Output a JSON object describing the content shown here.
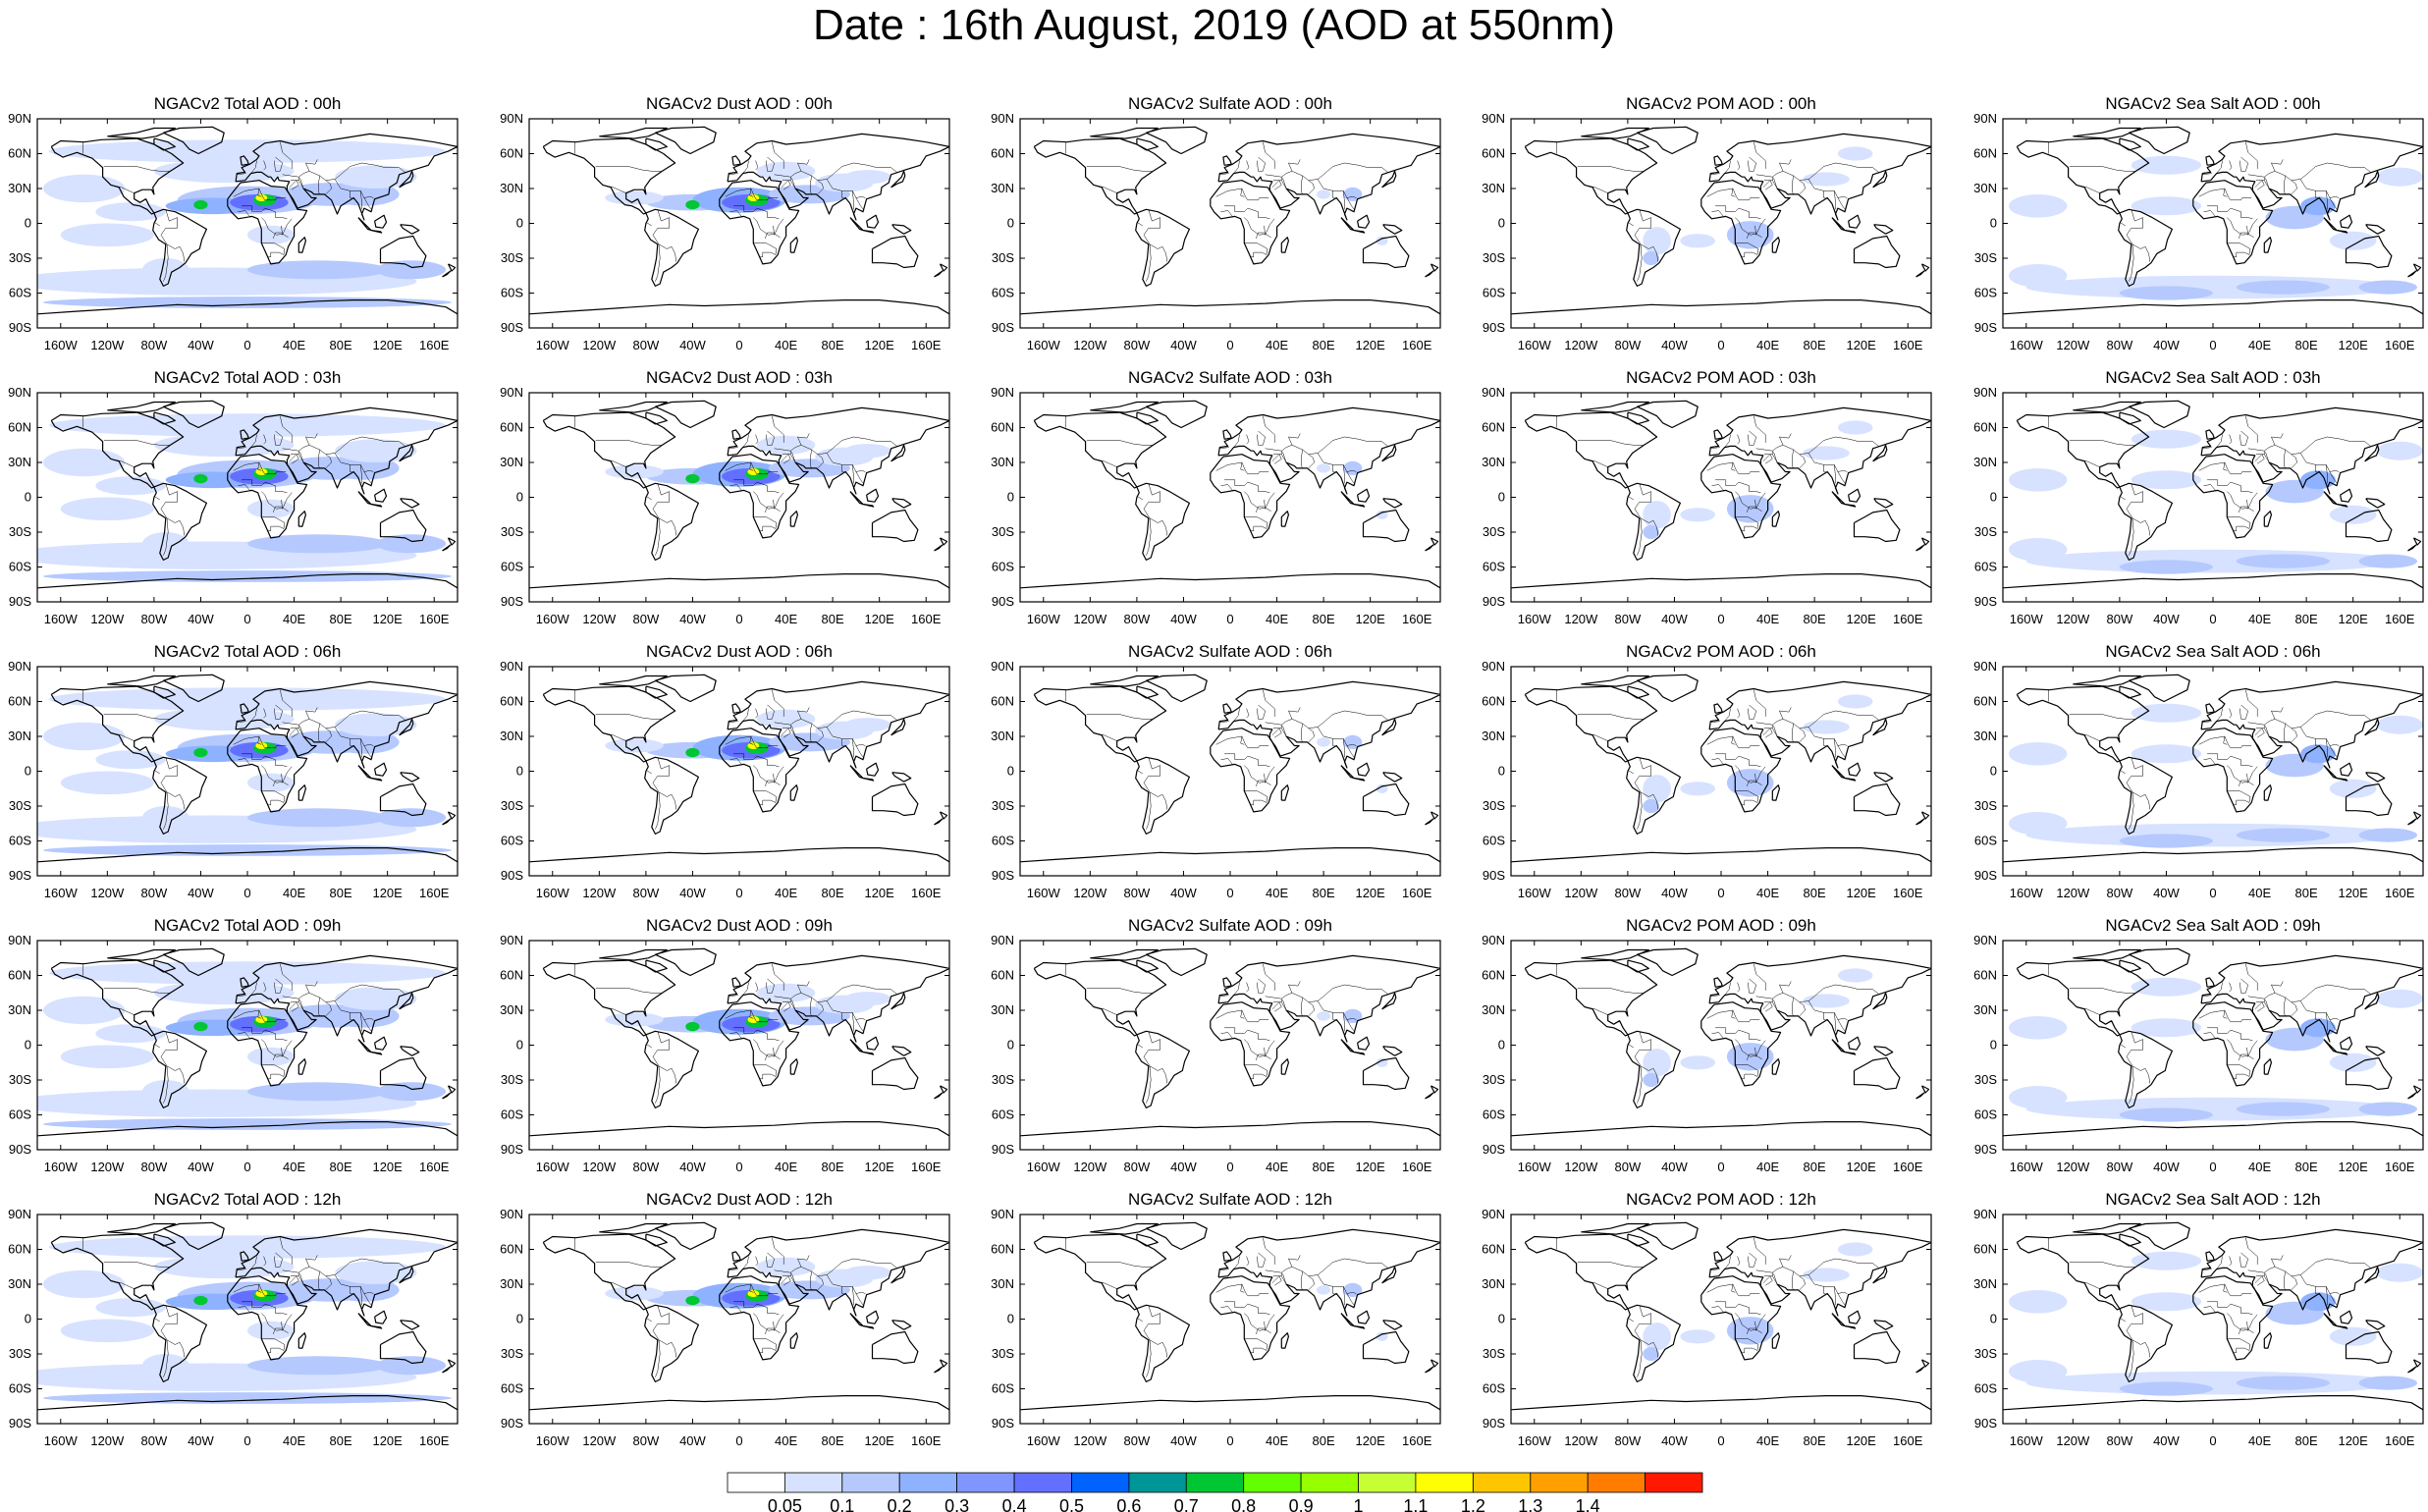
{
  "figure": {
    "title": "Date : 16th August, 2019 (AOD at 550nm)"
  },
  "map_axes": {
    "lat_ticks": [
      "90N",
      "60N",
      "30N",
      "0",
      "30S",
      "60S",
      "90S"
    ],
    "lon_ticks": [
      "160W",
      "120W",
      "80W",
      "40W",
      "0",
      "40E",
      "80E",
      "120E",
      "160E"
    ],
    "lon_tick_values": [
      -160,
      -120,
      -80,
      -40,
      0,
      40,
      80,
      120,
      160
    ],
    "lat_tick_values": [
      90,
      60,
      30,
      0,
      -30,
      -60,
      -90
    ]
  },
  "panels": [
    [
      "NGACv2 Total AOD : 00h",
      "NGACv2 Dust AOD : 00h",
      "NGACv2 Sulfate AOD : 00h",
      "NGACv2 POM AOD : 00h",
      "NGACv2 Sea Salt AOD : 00h"
    ],
    [
      "NGACv2 Total AOD : 03h",
      "NGACv2 Dust AOD : 03h",
      "NGACv2 Sulfate AOD : 03h",
      "NGACv2 POM AOD : 03h",
      "NGACv2 Sea Salt AOD : 03h"
    ],
    [
      "NGACv2 Total AOD : 06h",
      "NGACv2 Dust AOD : 06h",
      "NGACv2 Sulfate AOD : 06h",
      "NGACv2 POM AOD : 06h",
      "NGACv2 Sea Salt AOD : 06h"
    ],
    [
      "NGACv2 Total AOD : 09h",
      "NGACv2 Dust AOD : 09h",
      "NGACv2 Sulfate AOD : 09h",
      "NGACv2 POM AOD : 09h",
      "NGACv2 Sea Salt  AOD : 09h"
    ],
    [
      "NGACv2 Total AOD  : 12h",
      "NGACv2 Dust AOD : 12h",
      "NGACv2 Sulfate AOD : 12h",
      "NGACv2 POM  AOD : 12h",
      "NGACv2 Sea Salt AOD : 12h"
    ]
  ],
  "colorbar": {
    "labels": [
      "0.05",
      "0.1",
      "0.2",
      "0.3",
      "0.4",
      "0.5",
      "0.6",
      "0.7",
      "0.8",
      "0.9",
      "1",
      "1.1",
      "1.2",
      "1.3",
      "1.4"
    ],
    "colors": [
      "#ffffff",
      "#d6e2ff",
      "#b5c9ff",
      "#8eb2ff",
      "#7f96ff",
      "#6370ff",
      "#0063ff",
      "#009696",
      "#00c633",
      "#63ff00",
      "#96ff00",
      "#c6ff33",
      "#ffff00",
      "#ffc600",
      "#ffa000",
      "#ff7c00",
      "#ff1900"
    ]
  },
  "aod_colors": {
    "very_light": "#d6e2ff",
    "light": "#b5c9ff",
    "medium": "#8eb2ff",
    "strong": "#6370ff",
    "green": "#00c633",
    "yellow": "#ffff00"
  }
}
